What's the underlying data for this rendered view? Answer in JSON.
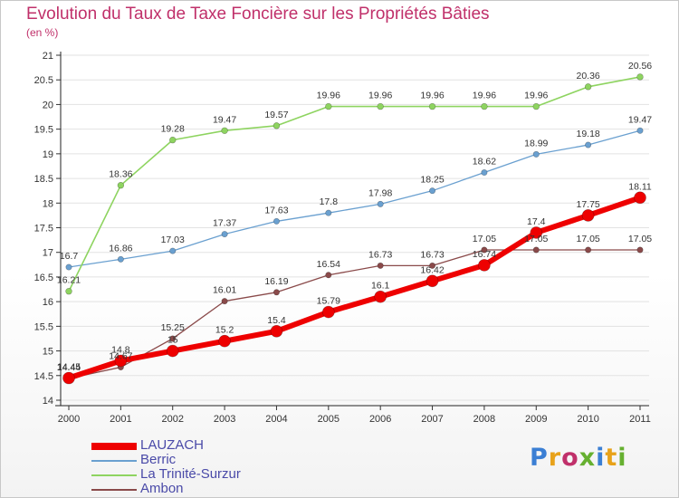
{
  "title": "Evolution du Taux de Taxe Foncière sur les Propriétés Bâties",
  "subtitle": "(en %)",
  "logo": {
    "text": "Proxiti",
    "letter_colors": [
      "#3b7fd4",
      "#e8a21a",
      "#c0306a",
      "#66b030",
      "#3b7fd4",
      "#e8a21a",
      "#66b030"
    ]
  },
  "chart_data": {
    "type": "line",
    "x": [
      2000,
      2001,
      2002,
      2003,
      2004,
      2005,
      2006,
      2007,
      2008,
      2009,
      2010,
      2011
    ],
    "ylim": [
      14,
      21
    ],
    "yticks": [
      14,
      14.5,
      15,
      15.5,
      16,
      16.5,
      17,
      17.5,
      18,
      18.5,
      19,
      19.5,
      20,
      20.5,
      21
    ],
    "ytick_labels": [
      "14",
      "14.5",
      "15",
      "15.5",
      "16",
      "16.5",
      "17",
      "17.5",
      "18",
      "18.5",
      "19",
      "19.5",
      "20",
      "20.5",
      "21"
    ],
    "grid": "horizontal",
    "legend": "bottom-left",
    "series": [
      {
        "name": "Berric",
        "color": "#6aa0d0",
        "values": [
          16.7,
          16.86,
          17.03,
          17.37,
          17.63,
          17.8,
          17.98,
          18.25,
          18.62,
          18.99,
          19.18,
          19.47
        ],
        "labels": [
          "16.7",
          "16.86",
          "17.03",
          "17.37",
          "17.63",
          "17.8",
          "17.98",
          "18.25",
          "18.62",
          "18.99",
          "19.18",
          "19.47"
        ]
      },
      {
        "name": "La Trinité-Surzur",
        "color": "#8ed460",
        "values": [
          16.21,
          18.36,
          19.28,
          19.47,
          19.57,
          19.96,
          19.96,
          19.96,
          19.96,
          19.96,
          20.36,
          20.56
        ],
        "labels": [
          "16.21",
          "18.36",
          "19.28",
          "19.47",
          "19.57",
          "19.96",
          "19.96",
          "19.96",
          "19.96",
          "19.96",
          "20.36",
          "20.56"
        ]
      },
      {
        "name": "Ambon",
        "color": "#8a4a4a",
        "values": [
          14.44,
          14.67,
          15.25,
          16.01,
          16.19,
          16.54,
          16.73,
          16.73,
          17.05,
          17.05,
          17.05,
          17.05
        ],
        "labels": [
          "14.44",
          "14.67",
          "15.25",
          "16.01",
          "16.19",
          "16.54",
          "16.73",
          "16.73",
          "17.05",
          "17.05",
          "17.05",
          "17.05"
        ]
      },
      {
        "name": "LAUZACH",
        "color": "#ee0000",
        "values": [
          14.45,
          14.8,
          15,
          15.2,
          15.4,
          15.79,
          16.1,
          16.42,
          16.74,
          17.4,
          17.75,
          18.11
        ],
        "labels": [
          "14.45",
          "14.8",
          "15",
          "15.2",
          "15.4",
          "15.79",
          "16.1",
          "16.42",
          "16.74",
          "17.4",
          "17.75",
          "18.11"
        ]
      }
    ],
    "legend_order": [
      "LAUZACH",
      "Berric",
      "La Trinité-Surzur",
      "Ambon"
    ]
  }
}
